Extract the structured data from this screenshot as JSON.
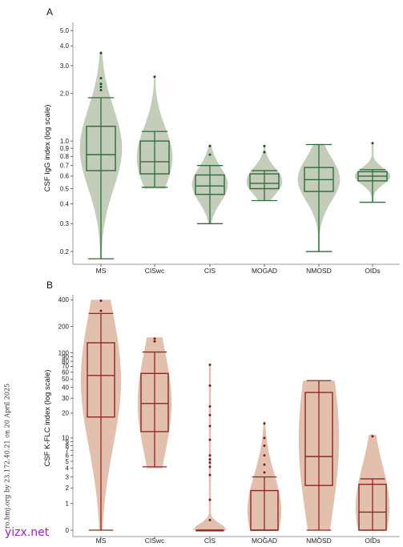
{
  "side_note": "ro.bmj.org by 23.172.40.21 on 20 April 2025",
  "watermark": "yizx.net",
  "chart_data": [
    {
      "type": "violin-box",
      "panel_label": "A",
      "ylabel": "CSF IgG index (log scale)",
      "yscale": "log",
      "ylim": [
        0.17,
        5.5
      ],
      "yticks": [
        0.2,
        0.3,
        0.4,
        0.5,
        0.6,
        0.7,
        0.8,
        0.9,
        1.0,
        2.0,
        3.0,
        4.0,
        5.0
      ],
      "ytick_labels": [
        "0.2",
        "0.3",
        "0.4",
        "0.5",
        "0.6",
        "0.7",
        "0.8",
        "0.9",
        "1.0",
        "2.0",
        "3.0",
        "4.0",
        "5.0"
      ],
      "categories": [
        "MS",
        "CISwc",
        "CIS",
        "MOGAD",
        "NMOSD",
        "OIDs"
      ],
      "colors": {
        "fill": "#c3cdb9",
        "line": "#2f6b3c",
        "point": "#1e4a28"
      },
      "groups": [
        {
          "name": "MS",
          "whisker_low": 0.18,
          "q1": 0.65,
          "median": 0.82,
          "q3": 1.24,
          "whisker_high": 1.88,
          "violin_min": 0.18,
          "violin_max": 3.7,
          "outliers": [
            2.1,
            2.2,
            2.3,
            2.5,
            3.6
          ]
        },
        {
          "name": "CISwc",
          "whisker_low": 0.51,
          "q1": 0.62,
          "median": 0.74,
          "q3": 1.0,
          "whisker_high": 1.15,
          "violin_min": 0.5,
          "violin_max": 2.6,
          "outliers": [
            2.55
          ]
        },
        {
          "name": "CIS",
          "whisker_low": 0.3,
          "q1": 0.46,
          "median": 0.52,
          "q3": 0.61,
          "whisker_high": 0.7,
          "violin_min": 0.3,
          "violin_max": 0.95,
          "outliers": [
            0.82,
            0.93
          ]
        },
        {
          "name": "MOGAD",
          "whisker_low": 0.42,
          "q1": 0.5,
          "median": 0.54,
          "q3": 0.62,
          "whisker_high": 0.65,
          "violin_min": 0.42,
          "violin_max": 0.94,
          "outliers": [
            0.85,
            0.93
          ]
        },
        {
          "name": "NMOSD",
          "whisker_low": 0.2,
          "q1": 0.48,
          "median": 0.57,
          "q3": 0.68,
          "whisker_high": 0.95,
          "violin_min": 0.2,
          "violin_max": 0.96,
          "outliers": []
        },
        {
          "name": "OIDs",
          "whisker_low": 0.41,
          "q1": 0.56,
          "median": 0.6,
          "q3": 0.64,
          "whisker_high": 0.66,
          "violin_min": 0.41,
          "violin_max": 0.98,
          "outliers": [
            0.97
          ]
        }
      ]
    },
    {
      "type": "violin-box",
      "panel_label": "B",
      "ylabel": "CSF K-FLC index (log scale)",
      "yscale": "log1p",
      "ylim": [
        -0.2,
        420
      ],
      "yticks": [
        0,
        1,
        2,
        3,
        4,
        5,
        6,
        7,
        8,
        9,
        10,
        20,
        30,
        40,
        50,
        60,
        70,
        80,
        90,
        100,
        200,
        400
      ],
      "ytick_labels": [
        "0",
        "1",
        "2",
        "3",
        "4",
        "5",
        "6",
        "7",
        "8",
        "9",
        "10",
        "20",
        "30",
        "40",
        "50",
        "60",
        "70",
        "80",
        "90",
        "100",
        "200",
        "400"
      ],
      "categories": [
        "MS",
        "CISwc",
        "CIS",
        "MOGAD",
        "NMOSD",
        "OIDs"
      ],
      "colors": {
        "fill": "#e3bfae",
        "line": "#8b2a22",
        "point": "#7a1e18"
      },
      "groups": [
        {
          "name": "MS",
          "whisker_low": 0,
          "q1": 18,
          "median": 55,
          "q3": 130,
          "whisker_high": 280,
          "violin_min": 0,
          "violin_max": 400,
          "outliers": [
            300,
            390
          ]
        },
        {
          "name": "CISwc",
          "whisker_low": 4.2,
          "q1": 12,
          "median": 26,
          "q3": 58,
          "whisker_high": 102,
          "violin_min": 4.0,
          "violin_max": 150,
          "outliers": [
            135,
            145
          ]
        },
        {
          "name": "CIS",
          "whisker_low": 0,
          "q1": 0,
          "median": 0,
          "q3": 0,
          "whisker_high": 0,
          "violin_min": 0,
          "violin_max": 75,
          "outliers": [
            0.3,
            1.2,
            3.2,
            4.2,
            4.8,
            5.3,
            6,
            9.5,
            14,
            19,
            24,
            42,
            73
          ]
        },
        {
          "name": "MOGAD",
          "whisker_low": 0,
          "q1": 0,
          "median": 0,
          "q3": 1.8,
          "whisker_high": 3.0,
          "violin_min": 0,
          "violin_max": 16,
          "outliers": [
            3.5,
            4.5,
            6,
            8,
            10,
            15
          ]
        },
        {
          "name": "NMOSD",
          "whisker_low": 0,
          "q1": 2.2,
          "median": 5.8,
          "q3": 35,
          "whisker_high": 48,
          "violin_min": 0,
          "violin_max": 48,
          "outliers": []
        },
        {
          "name": "OIDs",
          "whisker_low": 0,
          "q1": 0,
          "median": 0.6,
          "q3": 2.3,
          "whisker_high": 2.8,
          "violin_min": 0,
          "violin_max": 11,
          "outliers": [
            10.5
          ]
        }
      ]
    }
  ]
}
